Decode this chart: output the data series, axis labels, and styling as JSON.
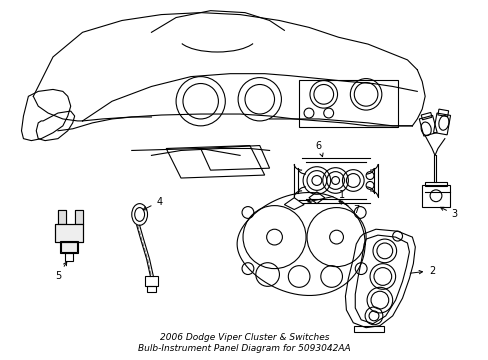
{
  "background_color": "#ffffff",
  "line_color": "#000000",
  "line_width": 0.8,
  "fig_width": 4.89,
  "fig_height": 3.6,
  "dpi": 100,
  "label_fontsize": 7,
  "caption_text": "2006 Dodge Viper Cluster & Switches\nBulb-Instrument Panel Diagram for 5093042AA",
  "caption_fontsize": 6.5,
  "caption_color": "#000000"
}
